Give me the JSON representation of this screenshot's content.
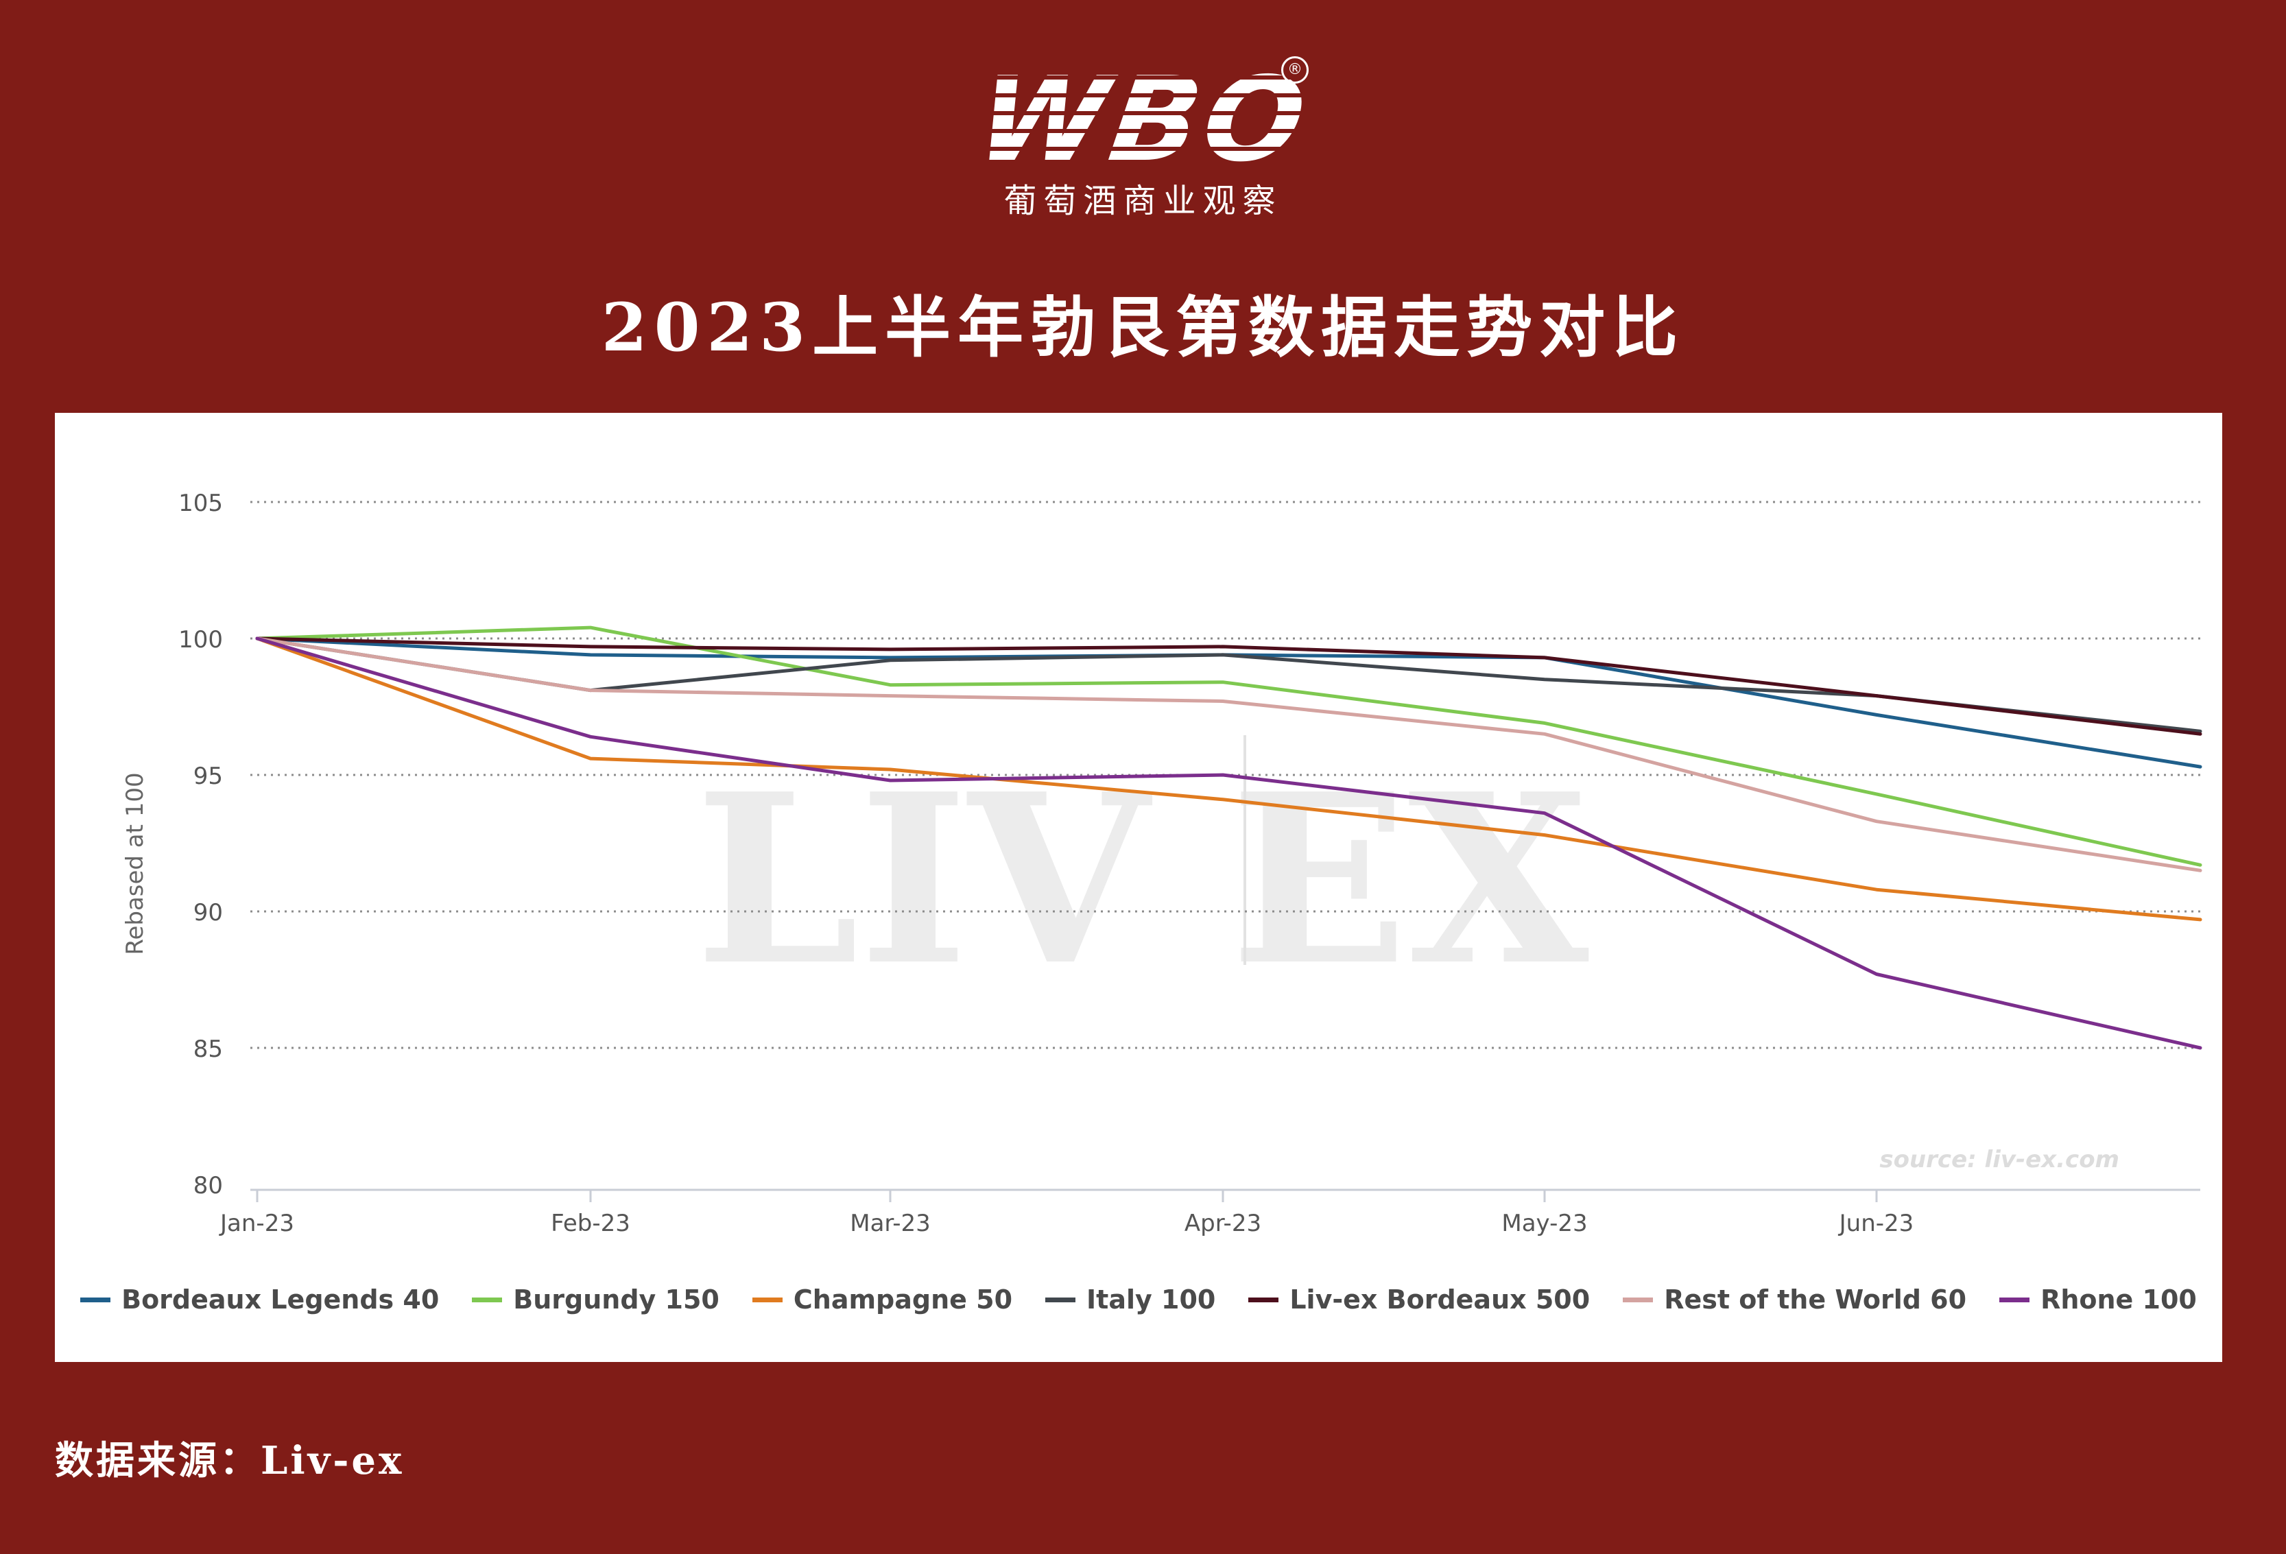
{
  "brand": {
    "logo_text": "WBO",
    "registered_mark": "®",
    "subtitle": "葡萄酒商业观察"
  },
  "title": "2023上半年勃艮第数据走势对比",
  "source_note": "数据来源：Liv-ex",
  "chart_data": {
    "type": "line",
    "title": "",
    "xlabel": "",
    "ylabel": "Rebased at 100",
    "x": [
      "Jan-23",
      "Feb-23",
      "Mar-23",
      "Apr-23",
      "May-23",
      "Jun-23",
      ""
    ],
    "x_ticks": [
      "Jan-23",
      "Feb-23",
      "Mar-23",
      "Apr-23",
      "May-23",
      "Jun-23"
    ],
    "ylim": [
      80,
      105
    ],
    "yticks": [
      80,
      85,
      90,
      95,
      100,
      105
    ],
    "grid": "dotted horizontal",
    "legend_position": "bottom",
    "watermark": "LIV|EX",
    "source_credit": "source: liv-ex.com",
    "series": [
      {
        "name": "Bordeaux Legends 40",
        "color": "#1f5f8b",
        "values": [
          100,
          99.4,
          99.3,
          99.4,
          99.3,
          97.2,
          95.3
        ]
      },
      {
        "name": "Burgundy 150",
        "color": "#7ec850",
        "values": [
          100,
          100.4,
          98.3,
          98.4,
          96.9,
          94.3,
          91.7
        ]
      },
      {
        "name": "Champagne 50",
        "color": "#e07b1f",
        "values": [
          100,
          95.6,
          95.2,
          94.1,
          92.8,
          90.8,
          89.7
        ]
      },
      {
        "name": "Italy 100",
        "color": "#41474e",
        "values": [
          100,
          98.1,
          99.2,
          99.4,
          98.5,
          97.9,
          96.6
        ]
      },
      {
        "name": "Liv-ex Bordeaux 500",
        "color": "#4d0f1c",
        "values": [
          100,
          99.7,
          99.6,
          99.7,
          99.3,
          97.9,
          96.5
        ]
      },
      {
        "name": "Rest of the World 60",
        "color": "#d4a3a0",
        "values": [
          100,
          98.1,
          97.9,
          97.7,
          96.5,
          93.3,
          91.5
        ]
      },
      {
        "name": "Rhone 100",
        "color": "#7b2e8c",
        "values": [
          100,
          96.4,
          94.8,
          95.0,
          93.6,
          87.7,
          85.0
        ]
      }
    ]
  }
}
